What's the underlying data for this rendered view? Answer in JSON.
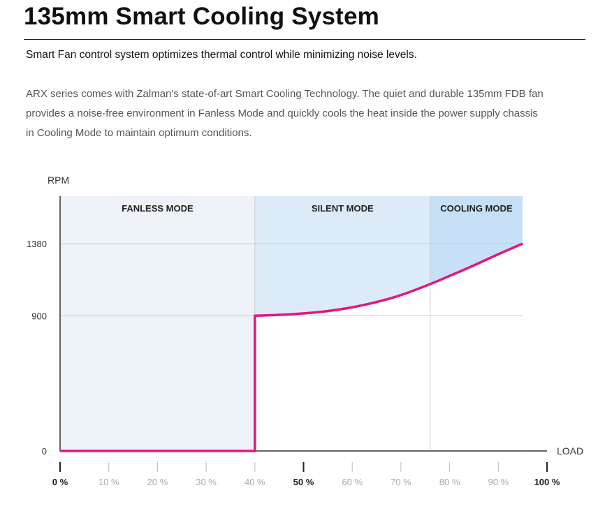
{
  "header": {
    "title": "135mm Smart Cooling System",
    "subtitle": "Smart Fan control system optimizes thermal control while minimizing noise levels.",
    "description_lines": [
      "ARX series comes with Zalman's state-of-art Smart Cooling Technology. The quiet and durable 135mm FDB fan",
      "provides a noise-free environment in Fanless Mode and quickly cools the heat inside the power supply chassis",
      "in Cooling Mode to maintain optimum conditions."
    ]
  },
  "chart_data": {
    "type": "line",
    "title": "",
    "xlabel": "LOAD",
    "ylabel": "RPM",
    "xlim": [
      0,
      100
    ],
    "ylim": [
      0,
      1380
    ],
    "x_ticks": [
      "0 %",
      "10 %",
      "20 %",
      "30 %",
      "40 %",
      "50 %",
      "60 %",
      "70 %",
      "80 %",
      "90 %",
      "100 %"
    ],
    "x_ticks_emphasized": [
      "0 %",
      "50 %",
      "100 %"
    ],
    "y_ticks": [
      {
        "value": 1380,
        "label": "1380"
      },
      {
        "value": 900,
        "label": "900"
      },
      {
        "value": 0,
        "label": "0"
      }
    ],
    "regions": [
      {
        "label": "FANLESS MODE",
        "x_start": 0,
        "x_end": 40,
        "color": "#eef3fa"
      },
      {
        "label": "SILENT MODE",
        "x_start": 40,
        "x_end": 76,
        "color": "#ddebf8"
      },
      {
        "label": "COOLING MODE",
        "x_start": 76,
        "x_end": 95,
        "color": "#c8e0f6"
      }
    ],
    "series": [
      {
        "color": "#e5157e",
        "x": [
          0,
          40,
          40,
          45,
          50,
          55,
          60,
          65,
          70,
          76,
          80,
          85,
          90,
          95
        ],
        "y": [
          0,
          0,
          900,
          905,
          915,
          930,
          955,
          990,
          1035,
          1110,
          1165,
          1235,
          1310,
          1380
        ]
      }
    ],
    "grid": true,
    "colors": {
      "axis": "#333333",
      "grid": "#cccccc",
      "line": "#e5157e",
      "fill": "#c8e0f6"
    }
  }
}
